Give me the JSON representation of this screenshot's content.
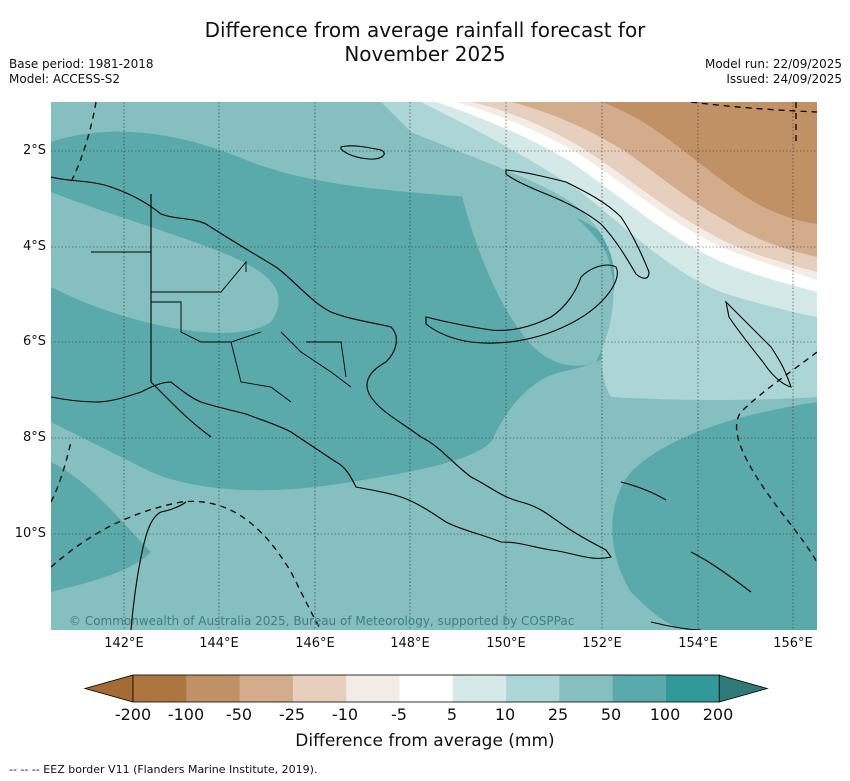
{
  "title": {
    "line1": "Difference from average rainfall forecast for",
    "line2": "November 2025"
  },
  "meta": {
    "base_period": "Base period: 1981-2018",
    "model": "Model: ACCESS-S2",
    "model_run": "Model run: 22/09/2025",
    "issued": "Issued: 24/09/2025"
  },
  "map": {
    "lat_labels": [
      "2°S",
      "4°S",
      "6°S",
      "8°S",
      "10°S"
    ],
    "lon_labels": [
      "142°E",
      "144°E",
      "146°E",
      "148°E",
      "150°E",
      "152°E",
      "154°E",
      "156°E"
    ],
    "copyright": "© Commonwealth of Australia 2025, Bureau of Meteorology, supported by COSPPac"
  },
  "colorbar": {
    "title": "Difference from average (mm)",
    "ticks": [
      "-200",
      "-100",
      "-50",
      "-25",
      "-10",
      "-5",
      "5",
      "10",
      "25",
      "50",
      "100",
      "200"
    ],
    "colors": [
      "#a46b35",
      "#ad763f",
      "#c19166",
      "#d3ad8b",
      "#e6cfbd",
      "#f3ece6",
      "#ffffff",
      "#d5e9e8",
      "#acd5d5",
      "#85bfbf",
      "#5aaaab",
      "#32999a",
      "#2e7a78"
    ]
  },
  "footnote": "-- -- -- EEZ border V11 (Flanders Marine Institute, 2019)."
}
